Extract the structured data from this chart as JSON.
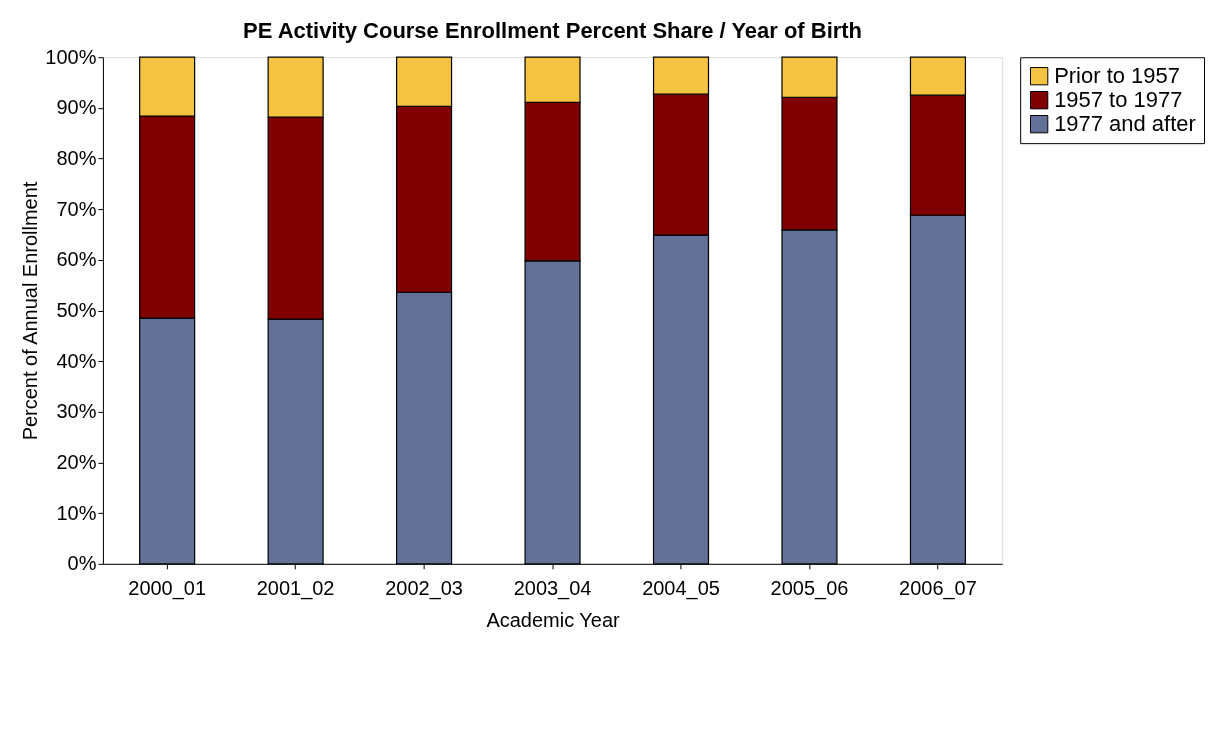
{
  "chart_data": {
    "type": "bar",
    "title": "PE Activity Course Enrollment Percent Share / Year of Birth",
    "xlabel": "Academic Year",
    "ylabel": "Percent of Annual Enrollment",
    "categories": [
      "2000_01",
      "2001_02",
      "2002_03",
      "2003_04",
      "2004_05",
      "2005_06",
      "2006_07"
    ],
    "stacked": true,
    "series": [
      {
        "name": "1977 and after",
        "color": "#637098",
        "values": [
          48.5,
          48.3,
          53.6,
          59.8,
          64.9,
          65.9,
          68.8
        ]
      },
      {
        "name": "1957 to 1977",
        "color": "#800000",
        "values": [
          39.9,
          39.9,
          36.7,
          31.3,
          27.8,
          26.2,
          23.7
        ]
      },
      {
        "name": "Prior to 1957",
        "color": "#f5c342",
        "values": [
          11.6,
          11.8,
          9.7,
          8.9,
          7.3,
          7.9,
          7.5
        ]
      }
    ],
    "ylim": [
      0,
      100
    ],
    "yticks": [
      {
        "value": 0,
        "label": "0%"
      },
      {
        "value": 10,
        "label": "10%"
      },
      {
        "value": 20,
        "label": "20%"
      },
      {
        "value": 30,
        "label": "30%"
      },
      {
        "value": 40,
        "label": "40%"
      },
      {
        "value": 50,
        "label": "50%"
      },
      {
        "value": 60,
        "label": "60%"
      },
      {
        "value": 70,
        "label": "70%"
      },
      {
        "value": 80,
        "label": "80%"
      },
      {
        "value": 90,
        "label": "90%"
      },
      {
        "value": 100,
        "label": "100%"
      }
    ],
    "grid": false,
    "legend": "right"
  }
}
